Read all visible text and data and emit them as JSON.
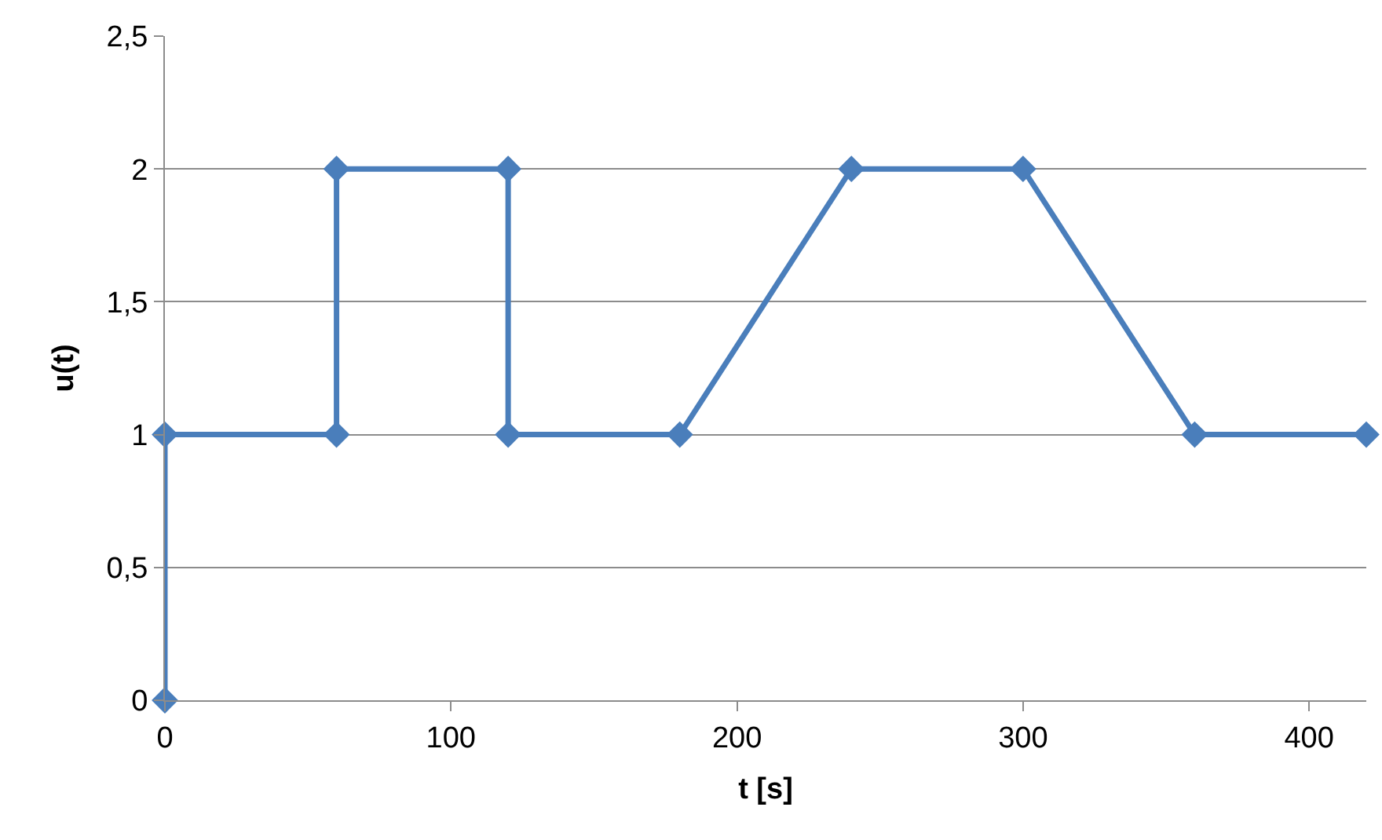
{
  "chart_data": {
    "type": "line",
    "xlabel": "t [s]",
    "ylabel": "u(t)",
    "x": [
      0,
      0,
      60,
      60,
      120,
      120,
      180,
      240,
      300,
      360,
      420
    ],
    "series": [
      {
        "color": "#4a7ebb",
        "values": [
          0,
          1,
          1,
          2,
          2,
          1,
          1,
          2,
          2,
          1,
          1
        ]
      }
    ],
    "xlim": [
      0,
      420
    ],
    "xticks": [
      0,
      100,
      200,
      300,
      400
    ],
    "ylim": [
      0,
      2.5
    ],
    "yticks": [
      0,
      {
        "value": 0.5,
        "label": "0,5"
      },
      1,
      {
        "value": 1.5,
        "label": "1,5"
      },
      2,
      {
        "value": 2.5,
        "label": "2,5"
      }
    ],
    "grid": "y",
    "marker": "diamond",
    "line_style": "solid",
    "legend": false
  }
}
